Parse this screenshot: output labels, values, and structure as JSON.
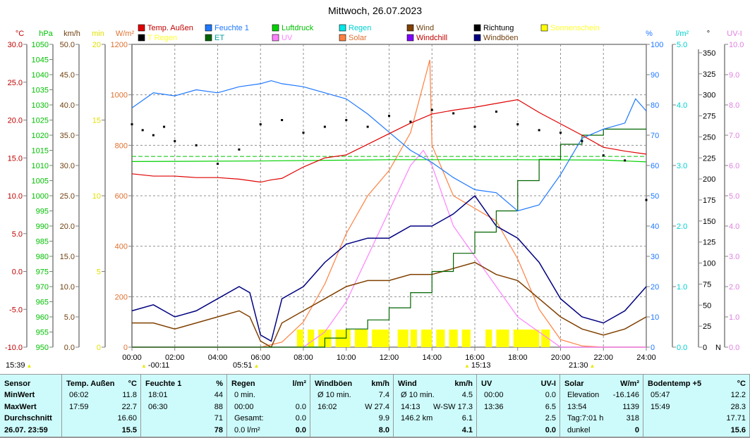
{
  "title": "Mittwoch, 26.07.2023",
  "legend": [
    {
      "label": "Temp. Außen",
      "color": "#e00000",
      "text": "#c00000"
    },
    {
      "label": "Feuchte 1",
      "color": "#1e78ff",
      "text": "#1e78ff"
    },
    {
      "label": "Luftdruck",
      "color": "#00d000",
      "text": "#00c000"
    },
    {
      "label": "Regen",
      "color": "#00e8e8",
      "text": "#00d0d0"
    },
    {
      "label": "Wind",
      "color": "#804000",
      "text": "#704010"
    },
    {
      "label": "Richtung",
      "color": "#000000",
      "text": "#000000"
    },
    {
      "label": "Sonnenschein",
      "color": "#ffff00",
      "text": "#ffff30"
    },
    {
      "label": "T Regen",
      "color": "#000000",
      "text": "#ffff30"
    },
    {
      "label": "ET",
      "color": "#006400",
      "text": "#00a0a0"
    },
    {
      "label": "UV",
      "color": "#ff80ff",
      "text": "#ff80ff"
    },
    {
      "label": "Solar",
      "color": "#ff8040",
      "text": "#e07030"
    },
    {
      "label": "Windchill",
      "color": "#8000ff",
      "text": "#c00000"
    },
    {
      "label": "Windböen",
      "color": "#000080",
      "text": "#704010"
    }
  ],
  "axes": {
    "left": [
      {
        "unit": "°C",
        "color": "#c00000",
        "min": -10,
        "max": 30,
        "ticks": [
          "30.0",
          "25.0",
          "20.0",
          "15.0",
          "10.0",
          "5.0",
          "0.0",
          "-5.0",
          "-10.0"
        ]
      },
      {
        "unit": "hPa",
        "color": "#00c000",
        "min": 950,
        "max": 1050,
        "ticks": [
          "1050",
          "1045",
          "1040",
          "1035",
          "1030",
          "1025",
          "1020",
          "1015",
          "1010",
          "1005",
          "1000",
          "995",
          "990",
          "985",
          "980",
          "975",
          "970",
          "965",
          "960",
          "955",
          "950"
        ]
      },
      {
        "unit": "km/h",
        "color": "#704010",
        "min": 0,
        "max": 50,
        "ticks": [
          "50.0",
          "45.0",
          "40.0",
          "35.0",
          "30.0",
          "25.0",
          "20.0",
          "15.0",
          "10.0",
          "5.0",
          "0.0"
        ]
      },
      {
        "unit": "min",
        "color": "#e0e000",
        "min": 0,
        "max": 20,
        "ticks": [
          "20",
          "15",
          "10",
          "5",
          "0"
        ]
      },
      {
        "unit": "W/m²",
        "color": "#e07030",
        "min": 0,
        "max": 1200,
        "ticks": [
          "1200",
          "1000",
          "800",
          "600",
          "400",
          "200",
          "0"
        ]
      }
    ],
    "right": [
      {
        "unit": "%",
        "color": "#1e78ff",
        "min": 0,
        "max": 100,
        "ticks": [
          "100",
          "90",
          "80",
          "70",
          "60",
          "50",
          "40",
          "30",
          "20",
          "10",
          "0"
        ]
      },
      {
        "unit": "l/m²",
        "color": "#00d0d0",
        "min": 0,
        "max": 5,
        "ticks": [
          "5.0",
          "4.0",
          "3.0",
          "2.0",
          "1.0",
          "0.0"
        ]
      },
      {
        "unit": "°",
        "color": "#000000",
        "min": 0,
        "max": 360,
        "ticks": [
          "350",
          "325",
          "300",
          "275",
          "250",
          "225",
          "200",
          "175",
          "150",
          "125",
          "100",
          "75",
          "50",
          "25",
          "0"
        ],
        "zero_label": "N"
      },
      {
        "unit": "UV-I",
        "color": "#e080e0",
        "min": 0,
        "max": 10,
        "ticks": [
          "10.0",
          "9.0",
          "8.0",
          "7.0",
          "6.0",
          "5.0",
          "4.0",
          "3.0",
          "2.0",
          "1.0",
          "0.0"
        ]
      }
    ],
    "x_ticks": [
      "00:00",
      "02:00",
      "04:00",
      "06:00",
      "08:00",
      "10:00",
      "12:00",
      "14:00",
      "16:00",
      "18:00",
      "20:00",
      "22:00",
      "24:00"
    ]
  },
  "markers": [
    {
      "text": "15:39",
      "icon": "moon-icon"
    },
    {
      "text": "-00:11",
      "icon": "moonset-icon"
    },
    {
      "text": "05:51",
      "icon": "sunrise-icon"
    },
    {
      "text": "15:13",
      "icon": "moon-phase-icon"
    },
    {
      "text": "21:30",
      "icon": "sunset-icon"
    }
  ],
  "chart_data": {
    "type": "line",
    "title": "Mittwoch, 26.07.2023",
    "xlim": [
      0,
      24
    ],
    "grid": true,
    "series": [
      {
        "name": "Temp. Außen",
        "axis": "°C",
        "x": [
          0,
          1,
          2,
          3,
          4,
          5,
          6,
          6.5,
          7,
          8,
          9,
          10,
          11,
          12,
          13,
          14,
          15,
          16,
          17,
          18,
          19,
          20,
          21,
          22,
          23,
          24
        ],
        "y": [
          12.9,
          12.6,
          12.6,
          12.4,
          12.4,
          12.2,
          11.8,
          12.1,
          12.3,
          13.8,
          15.0,
          15.4,
          16.8,
          18.2,
          19.6,
          20.8,
          21.3,
          21.7,
          22.2,
          22.7,
          21.0,
          19.5,
          18.0,
          16.4,
          15.9,
          15.5
        ]
      },
      {
        "name": "Feuchte 1",
        "axis": "%",
        "x": [
          0,
          1,
          2,
          3,
          4,
          5,
          6,
          6.5,
          7,
          8,
          9,
          10,
          11,
          12,
          13,
          14,
          15,
          16,
          17,
          18,
          19,
          20,
          21,
          22,
          23,
          23.5,
          24
        ],
        "y": [
          79,
          84,
          83,
          85,
          84,
          86,
          87,
          88,
          87,
          86,
          84,
          82,
          77,
          71,
          65,
          61,
          56,
          52,
          51,
          45,
          47,
          57,
          69,
          72,
          74,
          82,
          78
        ]
      },
      {
        "name": "Luftdruck",
        "axis": "hPa",
        "x": [
          0,
          6,
          12,
          18,
          22,
          24
        ],
        "y": [
          1011.3,
          1011.5,
          1011.9,
          1011.9,
          1011.8,
          1011.2
        ]
      },
      {
        "name": "ET",
        "axis": "l/m²",
        "x": [
          0,
          8,
          9,
          10,
          11,
          12,
          13,
          14,
          15,
          16,
          17,
          18,
          19,
          20,
          21,
          22,
          24
        ],
        "y": [
          0,
          0,
          0.15,
          0.3,
          0.45,
          0.65,
          0.9,
          1.25,
          1.55,
          1.9,
          2.25,
          2.75,
          3.1,
          3.35,
          3.5,
          3.6,
          3.6
        ]
      },
      {
        "name": "Solar",
        "axis": "W/m²",
        "x": [
          0,
          6,
          7,
          8,
          9,
          10,
          11,
          12,
          13,
          13.9,
          14,
          15,
          16,
          17,
          18,
          19,
          20,
          21,
          22,
          24
        ],
        "y": [
          0,
          0,
          20,
          100,
          250,
          450,
          600,
          700,
          850,
          1139,
          800,
          600,
          550,
          500,
          350,
          150,
          30,
          5,
          0,
          0
        ]
      },
      {
        "name": "UV",
        "axis": "UV-I",
        "x": [
          0,
          8,
          9,
          10,
          11,
          12,
          13,
          13.6,
          14,
          15,
          16,
          17,
          18,
          19,
          20,
          24
        ],
        "y": [
          0,
          0,
          0.5,
          1.5,
          3,
          4.5,
          6,
          6.5,
          6,
          4,
          3,
          2,
          1,
          0.5,
          0,
          0
        ]
      },
      {
        "name": "Windböen",
        "axis": "km/h",
        "x": [
          0,
          1,
          2,
          3,
          4,
          5,
          5.5,
          6,
          6.5,
          7,
          8,
          9,
          10,
          11,
          12,
          13,
          14,
          15,
          16,
          17,
          18,
          19,
          20,
          21,
          22,
          23,
          24
        ],
        "y": [
          6,
          7,
          5,
          6,
          8,
          10,
          9,
          2,
          1,
          8,
          10,
          14,
          17,
          18,
          18,
          20,
          20,
          22,
          25,
          20,
          18,
          14,
          8,
          5,
          4,
          6,
          10
        ]
      },
      {
        "name": "Wind",
        "axis": "km/h",
        "x": [
          0,
          1,
          2,
          3,
          4,
          5,
          5.5,
          6,
          6.5,
          7,
          8,
          9,
          10,
          11,
          12,
          13,
          14,
          15,
          16,
          17,
          18,
          19,
          20,
          21,
          22,
          23,
          24
        ],
        "y": [
          4,
          4,
          3,
          4,
          5,
          6,
          5,
          1,
          0,
          4,
          6,
          8,
          10,
          11,
          11,
          12,
          12,
          13,
          14,
          12,
          11,
          8,
          5,
          3,
          2,
          3,
          5
        ]
      },
      {
        "name": "Richtung",
        "axis": "°",
        "x": [
          0,
          0.5,
          1,
          1.5,
          2,
          3,
          4,
          5,
          6,
          7,
          8,
          9,
          10,
          11,
          12,
          13,
          14,
          15,
          16,
          17,
          18,
          19,
          20,
          21,
          22,
          23,
          24
        ],
        "y": [
          265,
          258,
          252,
          262,
          245,
          240,
          218,
          235,
          265,
          270,
          255,
          262,
          270,
          262,
          275,
          268,
          282,
          278,
          262,
          280,
          265,
          258,
          255,
          245,
          228,
          222,
          175
        ]
      },
      {
        "name": "Sonnenschein",
        "type": "intervals",
        "intervals": [
          [
            7.7,
            8.0
          ],
          [
            8.2,
            8.5
          ],
          [
            8.7,
            9.3
          ],
          [
            9.5,
            10.2
          ],
          [
            10.4,
            11.0
          ],
          [
            11.2,
            12.0
          ],
          [
            12.4,
            12.9
          ],
          [
            13.0,
            13.3
          ],
          [
            13.5,
            14.0
          ],
          [
            14.2,
            14.6
          ],
          [
            14.8,
            15.2
          ],
          [
            15.4,
            15.8
          ],
          [
            16.5,
            16.8
          ],
          [
            17.0,
            17.6
          ],
          [
            17.8,
            19.0
          ],
          [
            19.1,
            19.5
          ]
        ]
      }
    ]
  },
  "table": [
    {
      "head": [
        "Sensor",
        ""
      ],
      "rows": [
        [
          "MinWert",
          "",
          ""
        ],
        [
          "MaxWert",
          "",
          ""
        ],
        [
          "Durchschnitt",
          "",
          ""
        ],
        [
          "26.07. 23:59",
          "",
          ""
        ]
      ],
      "bold_first": true
    },
    {
      "head": [
        "Temp. Außen",
        "°C"
      ],
      "rows": [
        [
          "06:02",
          "11.8"
        ],
        [
          "17:59",
          "22.7"
        ],
        [
          "",
          "16.60"
        ],
        [
          "",
          "15.5"
        ]
      ]
    },
    {
      "head": [
        "Feuchte 1",
        "%"
      ],
      "rows": [
        [
          "18:01",
          "44"
        ],
        [
          "06:30",
          "88"
        ],
        [
          "",
          "71"
        ],
        [
          "",
          "78"
        ]
      ]
    },
    {
      "head": [
        "Regen",
        "l/m²"
      ],
      "rows": [
        [
          "0 min.",
          ""
        ],
        [
          "00:00",
          "0.0"
        ],
        [
          "Gesamt:",
          "0.0"
        ],
        [
          "0.0 l/m²",
          "0.0"
        ]
      ]
    },
    {
      "head": [
        "Windböen",
        "km/h"
      ],
      "rows": [
        [
          "Ø 10 min.",
          "7.4"
        ],
        [
          "16:02",
          "W 27.4"
        ],
        [
          "",
          "9.9"
        ],
        [
          "",
          "8.0"
        ]
      ]
    },
    {
      "head": [
        "Wind",
        "km/h"
      ],
      "rows": [
        [
          "Ø 10 min.",
          "4.5"
        ],
        [
          "14:13",
          "W-SW 17.3"
        ],
        [
          "146.2 km",
          "6.1"
        ],
        [
          "",
          "4.1"
        ]
      ]
    },
    {
      "head": [
        "UV",
        "UV-I"
      ],
      "rows": [
        [
          "00:00",
          "0.0"
        ],
        [
          "13:36",
          "6.5"
        ],
        [
          "",
          "2.5"
        ],
        [
          "",
          "0.0"
        ]
      ]
    },
    {
      "head": [
        "Solar",
        "W/m²"
      ],
      "rows": [
        [
          "Elevation",
          "-16.146"
        ],
        [
          "13:54",
          "1139"
        ],
        [
          "Tag:7:01 h",
          "318"
        ],
        [
          "dunkel",
          "0"
        ]
      ]
    },
    {
      "head": [
        "Bodentemp +5",
        "°C"
      ],
      "rows": [
        [
          "05:47",
          "12.2"
        ],
        [
          "15:49",
          "28.3"
        ],
        [
          "",
          "17.71"
        ],
        [
          "",
          "15.6"
        ]
      ]
    }
  ]
}
